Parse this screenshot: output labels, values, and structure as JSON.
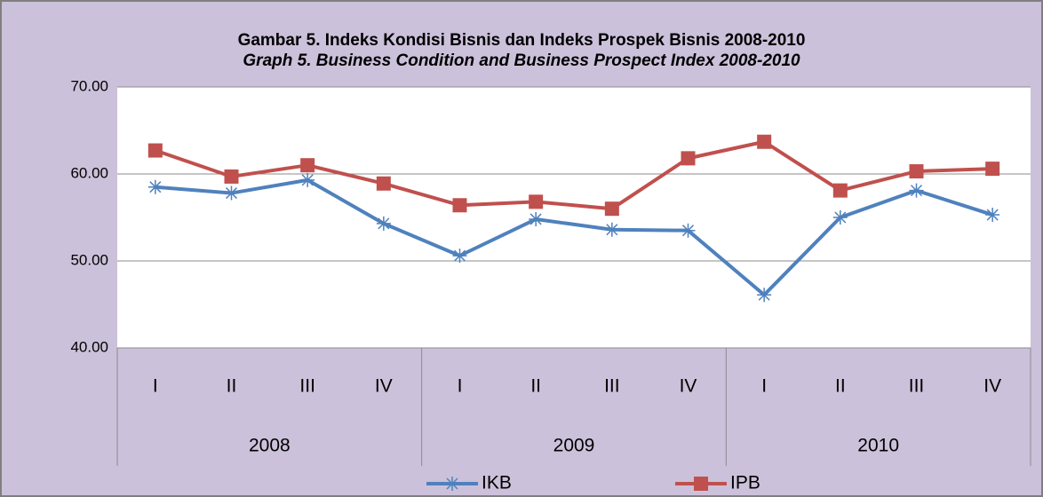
{
  "chart_data": {
    "type": "line",
    "title": "Gambar 5. Indeks Kondisi Bisnis dan Indeks Prospek Bisnis 2008-2010",
    "subtitle": "Graph 5. Business Condition and Business Prospect Index 2008-2010",
    "categories": [
      "I",
      "II",
      "III",
      "IV",
      "I",
      "II",
      "III",
      "IV",
      "I",
      "II",
      "III",
      "IV"
    ],
    "category_groups": [
      "2008",
      "2009",
      "2010"
    ],
    "series": [
      {
        "name": "IKB",
        "color": "#4f81bd",
        "values": [
          58.5,
          57.8,
          59.3,
          54.3,
          50.6,
          54.8,
          53.6,
          53.5,
          46.1,
          55.0,
          58.1,
          55.3
        ]
      },
      {
        "name": "IPB",
        "color": "#c0504d",
        "values": [
          62.7,
          59.7,
          61.0,
          58.9,
          56.4,
          56.8,
          56.0,
          61.8,
          63.7,
          58.1,
          60.3,
          60.6
        ]
      }
    ],
    "ylim": [
      40,
      70
    ],
    "yticks": [
      {
        "value": 40,
        "label": "40.00"
      },
      {
        "value": 50,
        "label": "50.00"
      },
      {
        "value": 60,
        "label": "60.00"
      },
      {
        "value": 70,
        "label": "70.00"
      }
    ],
    "grid": true,
    "legend": "bottom"
  }
}
